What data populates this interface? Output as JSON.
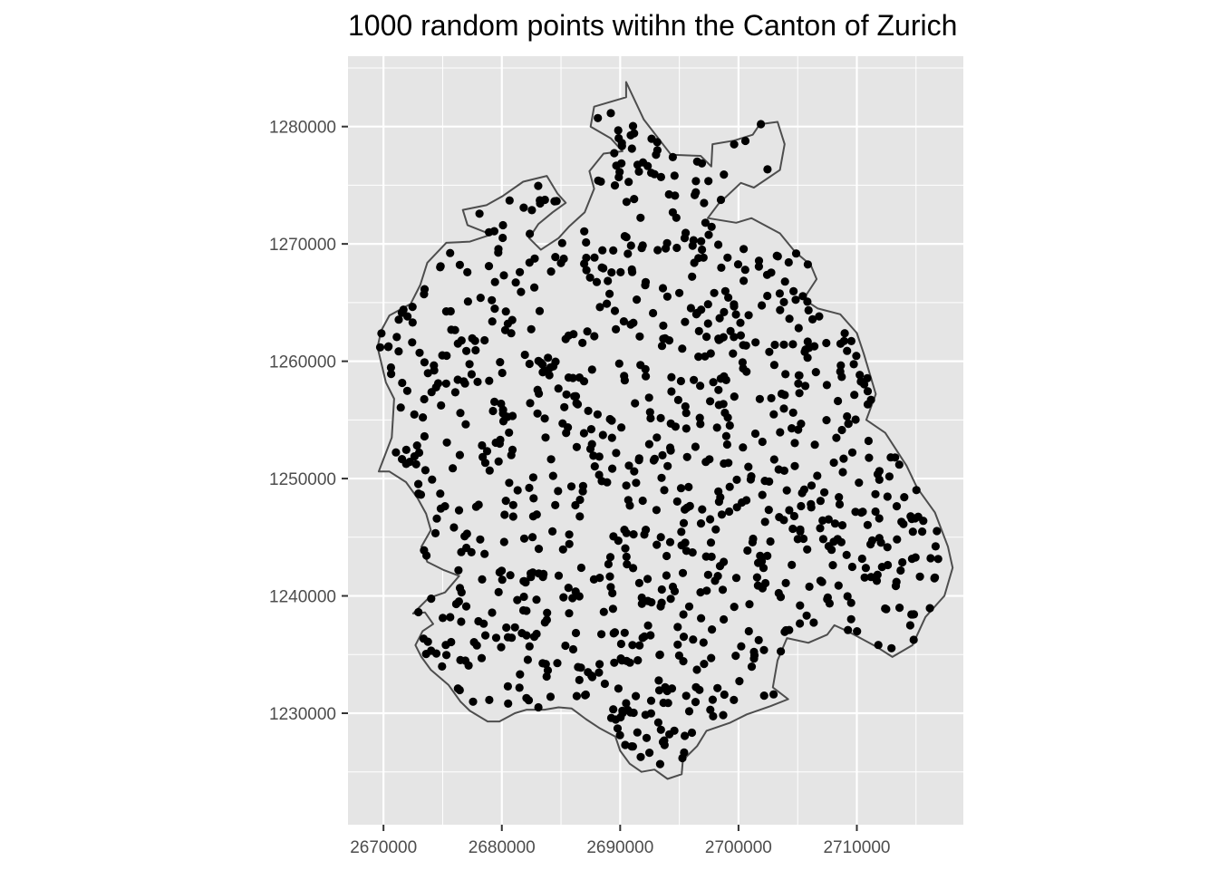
{
  "chart_data": {
    "type": "scatter",
    "title": "1000 random points witihn the Canton of Zurich",
    "xlabel": "",
    "ylabel": "",
    "xlim": [
      2667000,
      2719000
    ],
    "ylim": [
      1220500,
      1286000
    ],
    "x_ticks": [
      2670000,
      2680000,
      2690000,
      2700000,
      2710000
    ],
    "x_tick_labels": [
      "2670000",
      "2680000",
      "2690000",
      "2700000",
      "2710000"
    ],
    "y_ticks": [
      1230000,
      1240000,
      1250000,
      1260000,
      1270000,
      1280000
    ],
    "y_tick_labels": [
      "1230000",
      "1240000",
      "1250000",
      "1260000",
      "1270000",
      "1280000"
    ],
    "grid": true,
    "panel_background": "#e5e5e5",
    "grid_color": "#ffffff",
    "point_color": "#000000",
    "boundary_fill": "#e5e5e5",
    "boundary_color": "#4d4d4d",
    "boundary": [
      [
        2669600,
        1250600
      ],
      [
        2670700,
        1253500
      ],
      [
        2670900,
        1256800
      ],
      [
        2670200,
        1258200
      ],
      [
        2669500,
        1261200
      ],
      [
        2669800,
        1262600
      ],
      [
        2670500,
        1263900
      ],
      [
        2672300,
        1264900
      ],
      [
        2673100,
        1266500
      ],
      [
        2673700,
        1268400
      ],
      [
        2675300,
        1270100
      ],
      [
        2677300,
        1270200
      ],
      [
        2679100,
        1270800
      ],
      [
        2677100,
        1271600
      ],
      [
        2676700,
        1272900
      ],
      [
        2678700,
        1273300
      ],
      [
        2680100,
        1274100
      ],
      [
        2681800,
        1275300
      ],
      [
        2683800,
        1275800
      ],
      [
        2684700,
        1274300
      ],
      [
        2685400,
        1273500
      ],
      [
        2684300,
        1272700
      ],
      [
        2683100,
        1271700
      ],
      [
        2682300,
        1270500
      ],
      [
        2683300,
        1269500
      ],
      [
        2684800,
        1270500
      ],
      [
        2685700,
        1271500
      ],
      [
        2687000,
        1272700
      ],
      [
        2687800,
        1274700
      ],
      [
        2687400,
        1276200
      ],
      [
        2688600,
        1277700
      ],
      [
        2690200,
        1277900
      ],
      [
        2689200,
        1279000
      ],
      [
        2687500,
        1280000
      ],
      [
        2687800,
        1281700
      ],
      [
        2690500,
        1282500
      ],
      [
        2690500,
        1283800
      ],
      [
        2692000,
        1280600
      ],
      [
        2694300,
        1277600
      ],
      [
        2696800,
        1277500
      ],
      [
        2697700,
        1276600
      ],
      [
        2697800,
        1278500
      ],
      [
        2699600,
        1278800
      ],
      [
        2701200,
        1279300
      ],
      [
        2701800,
        1280200
      ],
      [
        2703300,
        1280400
      ],
      [
        2703900,
        1278500
      ],
      [
        2703500,
        1276300
      ],
      [
        2701300,
        1274800
      ],
      [
        2700200,
        1275200
      ],
      [
        2698300,
        1273400
      ],
      [
        2697400,
        1272200
      ],
      [
        2699800,
        1271800
      ],
      [
        2701100,
        1272200
      ],
      [
        2703500,
        1270900
      ],
      [
        2704800,
        1269300
      ],
      [
        2706100,
        1268200
      ],
      [
        2706600,
        1267000
      ],
      [
        2705500,
        1265300
      ],
      [
        2706700,
        1264500
      ],
      [
        2708600,
        1264000
      ],
      [
        2710000,
        1262400
      ],
      [
        2710600,
        1260600
      ],
      [
        2711600,
        1257200
      ],
      [
        2710800,
        1255000
      ],
      [
        2712400,
        1253900
      ],
      [
        2714200,
        1251100
      ],
      [
        2715100,
        1249200
      ],
      [
        2716600,
        1247100
      ],
      [
        2717700,
        1244200
      ],
      [
        2718100,
        1242400
      ],
      [
        2717400,
        1240000
      ],
      [
        2715800,
        1238200
      ],
      [
        2714700,
        1235800
      ],
      [
        2713000,
        1234800
      ],
      [
        2711600,
        1235700
      ],
      [
        2709400,
        1236900
      ],
      [
        2708100,
        1237500
      ],
      [
        2707500,
        1236700
      ],
      [
        2705900,
        1236000
      ],
      [
        2704100,
        1236400
      ],
      [
        2703300,
        1234500
      ],
      [
        2702900,
        1232200
      ],
      [
        2704200,
        1231200
      ],
      [
        2702700,
        1230600
      ],
      [
        2700700,
        1229900
      ],
      [
        2699300,
        1229200
      ],
      [
        2697300,
        1228500
      ],
      [
        2696500,
        1227200
      ],
      [
        2695300,
        1226000
      ],
      [
        2695200,
        1224800
      ],
      [
        2694000,
        1224400
      ],
      [
        2692900,
        1225200
      ],
      [
        2691800,
        1225000
      ],
      [
        2690800,
        1225700
      ],
      [
        2690000,
        1226800
      ],
      [
        2689600,
        1228000
      ],
      [
        2688300,
        1228700
      ],
      [
        2687100,
        1229500
      ],
      [
        2685900,
        1230400
      ],
      [
        2684800,
        1230500
      ],
      [
        2683600,
        1230300
      ],
      [
        2682100,
        1230300
      ],
      [
        2681100,
        1230000
      ],
      [
        2679800,
        1229300
      ],
      [
        2678800,
        1229300
      ],
      [
        2677300,
        1230200
      ],
      [
        2676500,
        1231000
      ],
      [
        2675500,
        1232400
      ],
      [
        2674000,
        1233700
      ],
      [
        2673200,
        1234800
      ],
      [
        2672700,
        1235800
      ],
      [
        2673300,
        1237000
      ],
      [
        2674200,
        1237600
      ],
      [
        2673500,
        1238600
      ],
      [
        2672500,
        1238500
      ],
      [
        2673800,
        1239800
      ],
      [
        2675200,
        1240300
      ],
      [
        2676400,
        1241700
      ],
      [
        2675100,
        1242200
      ],
      [
        2673700,
        1242900
      ],
      [
        2673200,
        1244200
      ],
      [
        2674000,
        1245600
      ],
      [
        2673600,
        1247000
      ],
      [
        2672900,
        1248300
      ],
      [
        2671900,
        1249700
      ],
      [
        2670500,
        1250600
      ],
      [
        2669600,
        1250600
      ]
    ],
    "seed": 20240610,
    "n_points": 1000
  }
}
